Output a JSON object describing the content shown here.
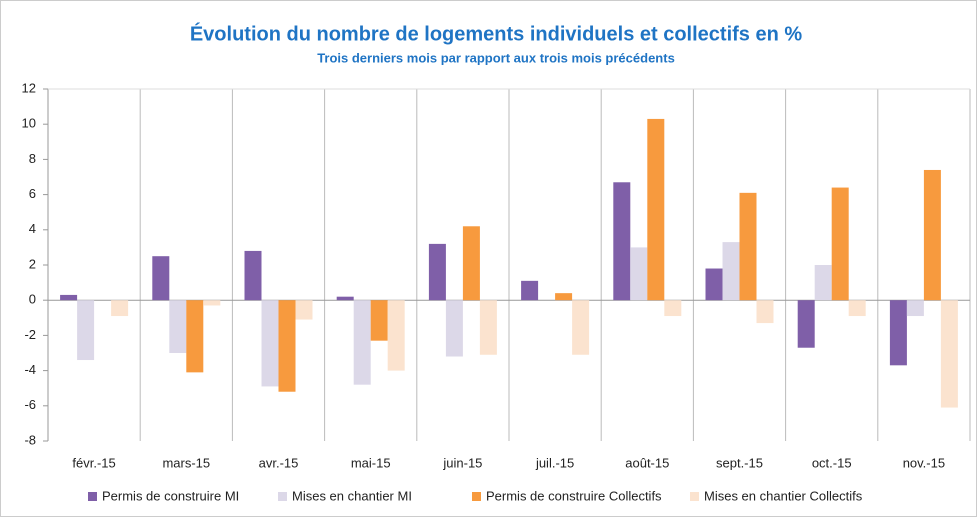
{
  "chart_data": {
    "type": "bar",
    "title": "Évolution du nombre de logements individuels et collectifs en %",
    "subtitle": "Trois derniers mois par rapport aux trois mois précédents",
    "categories": [
      "févr.-15",
      "mars-15",
      "avr.-15",
      "mai-15",
      "juin-15",
      "juil.-15",
      "août-15",
      "sept.-15",
      "oct.-15",
      "nov.-15"
    ],
    "series": [
      {
        "name": "Permis de construire MI",
        "color": "#7f5fa8",
        "values": [
          0.3,
          2.5,
          2.8,
          0.2,
          3.2,
          1.1,
          6.7,
          1.8,
          -2.7,
          -3.7
        ]
      },
      {
        "name": "Mises en chantier MI",
        "color": "#dcd8e8",
        "values": [
          -3.4,
          -3.0,
          -4.9,
          -4.8,
          -3.2,
          0,
          3.0,
          3.3,
          2.0,
          -0.9
        ]
      },
      {
        "name": "Permis de construire Collectifs",
        "color": "#f79a3e",
        "values": [
          0,
          -4.1,
          -5.2,
          -2.3,
          4.2,
          0.4,
          10.3,
          6.1,
          6.4,
          7.4
        ]
      },
      {
        "name": "Mises en chantier Collectifs",
        "color": "#fbe3cf",
        "values": [
          -0.9,
          -0.3,
          -1.1,
          -4.0,
          -3.1,
          -3.1,
          -0.9,
          -1.3,
          -0.9,
          -6.1
        ]
      }
    ],
    "ylim": [
      -8,
      12
    ],
    "yticks": [
      -8,
      -6,
      -4,
      -2,
      0,
      2,
      4,
      6,
      8,
      10,
      12
    ],
    "legend": "bottom"
  }
}
